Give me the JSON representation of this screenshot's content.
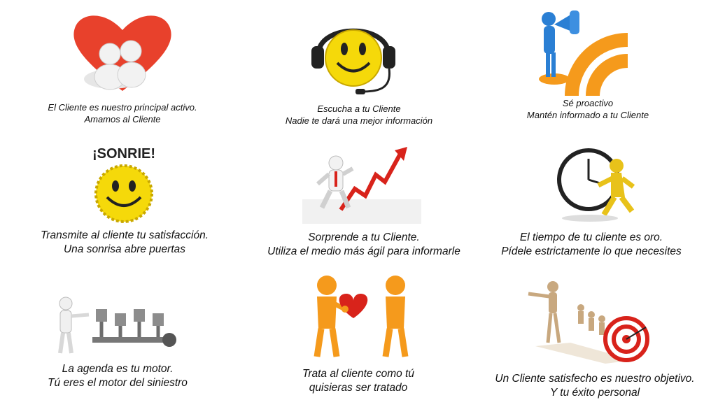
{
  "cards": [
    {
      "id": "heart",
      "line1": "El  Cliente es nuestro principal activo.",
      "line2": "Amamos al Cliente"
    },
    {
      "id": "headset",
      "line1": "Escucha a tu Cliente",
      "line2": "Nadie te dará una mejor información"
    },
    {
      "id": "megaphone",
      "line1": "Sé proactivo",
      "line2": "Mantén informado a tu Cliente"
    },
    {
      "id": "sonrie",
      "line1": "Transmite al cliente tu satisfacción.",
      "line2": "Una sonrisa abre puertas",
      "badge": "¡SONRIE!"
    },
    {
      "id": "growth",
      "line1": "Sorprende a tu Cliente.",
      "line2": "Utiliza el medio más ágil para informarle"
    },
    {
      "id": "clock",
      "line1": "El tiempo de tu cliente es oro.",
      "line2": "Pídele estrictamente lo que necesites"
    },
    {
      "id": "engine",
      "line1": "La agenda es tu motor.",
      "line2": "Tú eres el motor del siniestro"
    },
    {
      "id": "gift",
      "line1": "Trata al cliente como tú",
      "line2": "quisieras ser tratado"
    },
    {
      "id": "target",
      "line1": "Un Cliente satisfecho es nuestro objetivo.",
      "line2": "Y tu éxito personal"
    }
  ],
  "colors": {
    "heart": "#e8412c",
    "smiley": "#f5d90a",
    "orange": "#f59a1c",
    "blue": "#2a7fd4",
    "red_arrow": "#d8231b",
    "gold": "#e8c21a"
  }
}
